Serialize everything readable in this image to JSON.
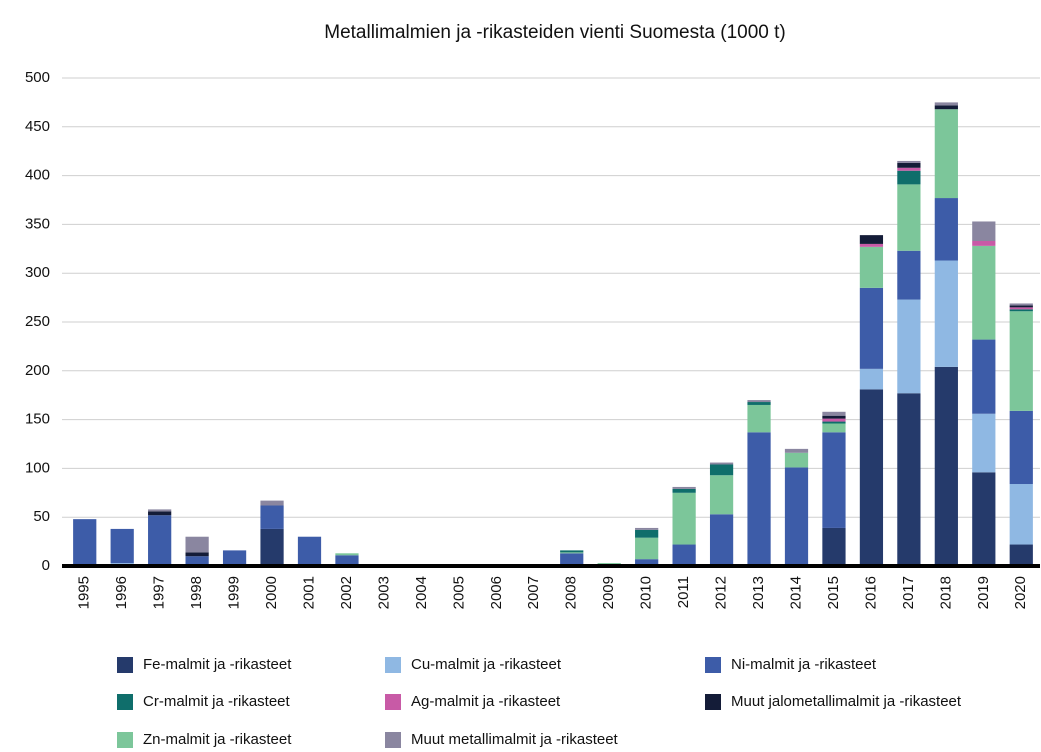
{
  "chart_data": {
    "type": "stacked_bar",
    "title": "Metallimalmien ja -rikasteiden vienti Suomesta (1000 t)",
    "categories": [
      "1995",
      "1996",
      "1997",
      "1998",
      "1999",
      "2000",
      "2001",
      "2002",
      "2003",
      "2004",
      "2005",
      "2006",
      "2007",
      "2008",
      "2009",
      "2010",
      "2011",
      "2012",
      "2013",
      "2014",
      "2015",
      "2016",
      "2017",
      "2018",
      "2019",
      "2020"
    ],
    "series": [
      {
        "name": "Fe-malmit ja -rikasteet",
        "color": "#253a6b",
        "values": [
          0,
          0,
          0,
          0,
          0,
          38,
          0,
          0,
          0,
          0,
          0,
          0,
          0,
          0,
          0,
          0,
          0,
          0,
          0,
          0,
          39,
          181,
          177,
          204,
          96,
          22
        ]
      },
      {
        "name": "Cu-malmit ja -rikasteet",
        "color": "#8fb8e3",
        "values": [
          1,
          3,
          0,
          0,
          2,
          0,
          2,
          1,
          0,
          0,
          0,
          0,
          0,
          0,
          0,
          0,
          0,
          0,
          0,
          0,
          0,
          21,
          96,
          109,
          60,
          62
        ]
      },
      {
        "name": "Ni-malmit ja -rikasteet",
        "color": "#3d5ca8",
        "values": [
          47,
          35,
          52,
          10,
          14,
          24,
          28,
          10,
          0,
          0,
          0,
          0,
          0,
          13,
          1,
          7,
          22,
          53,
          137,
          101,
          98,
          83,
          50,
          64,
          76,
          75
        ]
      },
      {
        "name": "Cr-malmit ja -rikasteet",
        "color": "#0f6e6b",
        "values": [
          0,
          0,
          0,
          0,
          0,
          0,
          0,
          0,
          0,
          0,
          0,
          0,
          0,
          2,
          0,
          8,
          4,
          11,
          3,
          0,
          2,
          0,
          14,
          0,
          0,
          2
        ]
      },
      {
        "name": "Ag-malmit ja -rikasteet",
        "color": "#c85aa6",
        "values": [
          0,
          0,
          0,
          0,
          0,
          0,
          0,
          0,
          0,
          0,
          0,
          0,
          0,
          0,
          0,
          0,
          0,
          0,
          0,
          0,
          3,
          3,
          3,
          0,
          5,
          2
        ]
      },
      {
        "name": "Muut jalometallimalmit ja -rikasteet",
        "color": "#141c38",
        "values": [
          0,
          0,
          4,
          4,
          0,
          0,
          0,
          0,
          0,
          0,
          0,
          0,
          0,
          0,
          0,
          0,
          0,
          0,
          0,
          0,
          3,
          9,
          5,
          4,
          0,
          2
        ]
      },
      {
        "name": "Zn-malmit ja -rikasteet",
        "color": "#7cc69a",
        "values": [
          0,
          0,
          0,
          0,
          0,
          0,
          0,
          2,
          0,
          0,
          0,
          0,
          0,
          1,
          2,
          22,
          53,
          40,
          28,
          15,
          9,
          42,
          68,
          91,
          96,
          102
        ]
      },
      {
        "name": "Muut metallimalmit ja -rikasteet",
        "color": "#8a86a0",
        "values": [
          0,
          0,
          2,
          16,
          0,
          5,
          0,
          0,
          1,
          1,
          1,
          2,
          2,
          0,
          0,
          2,
          2,
          2,
          2,
          4,
          4,
          0,
          2,
          3,
          20,
          2
        ]
      }
    ],
    "ylim": [
      0,
      500
    ],
    "yticks": [
      0,
      50,
      100,
      150,
      200,
      250,
      300,
      350,
      400,
      450,
      500
    ],
    "grid": true
  }
}
